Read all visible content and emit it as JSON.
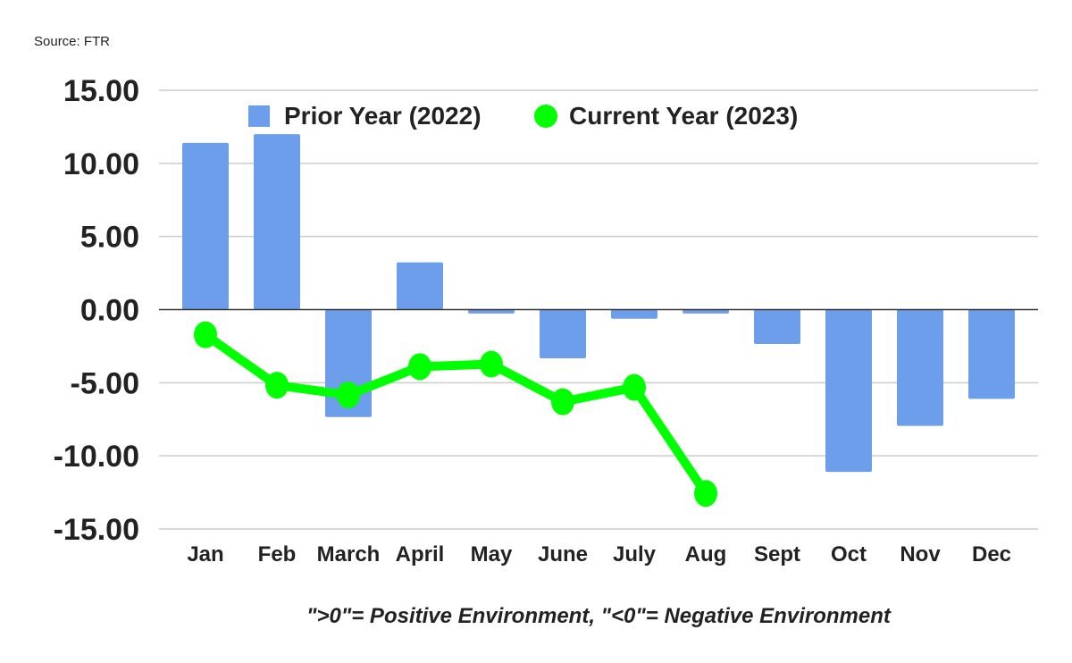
{
  "source": "Source: FTR",
  "note": "\">0\"= Positive Environment, \"<0\"= Negative Environment",
  "chart_data": {
    "type": "bar+line",
    "categories": [
      "Jan",
      "Feb",
      "March",
      "April",
      "May",
      "June",
      "July",
      "Aug",
      "Sept",
      "Oct",
      "Nov",
      "Dec"
    ],
    "series": [
      {
        "name": "Prior Year (2022)",
        "type": "bar",
        "color": "#6d9eeb",
        "values": [
          11.4,
          12.0,
          -7.35,
          3.23,
          -0.27,
          -3.33,
          -0.63,
          -0.27,
          -2.35,
          -11.1,
          -7.95,
          -6.1
        ]
      },
      {
        "name": "Current Year (2023)",
        "type": "line",
        "color": "#00ff00",
        "values": [
          -1.72,
          -5.17,
          -5.84,
          -3.9,
          -3.73,
          -6.3,
          -5.32,
          -12.57,
          null,
          null,
          null,
          null
        ]
      }
    ],
    "ylim": [
      -15,
      15
    ],
    "yticks": [
      15,
      10,
      5,
      0,
      -5,
      -10,
      -15
    ],
    "ytick_labels": [
      "15.00",
      "10.00",
      "5.00",
      "0.00",
      "-5.00",
      "-10.00",
      "-15.00"
    ],
    "grid": true,
    "legend": "top-center"
  }
}
